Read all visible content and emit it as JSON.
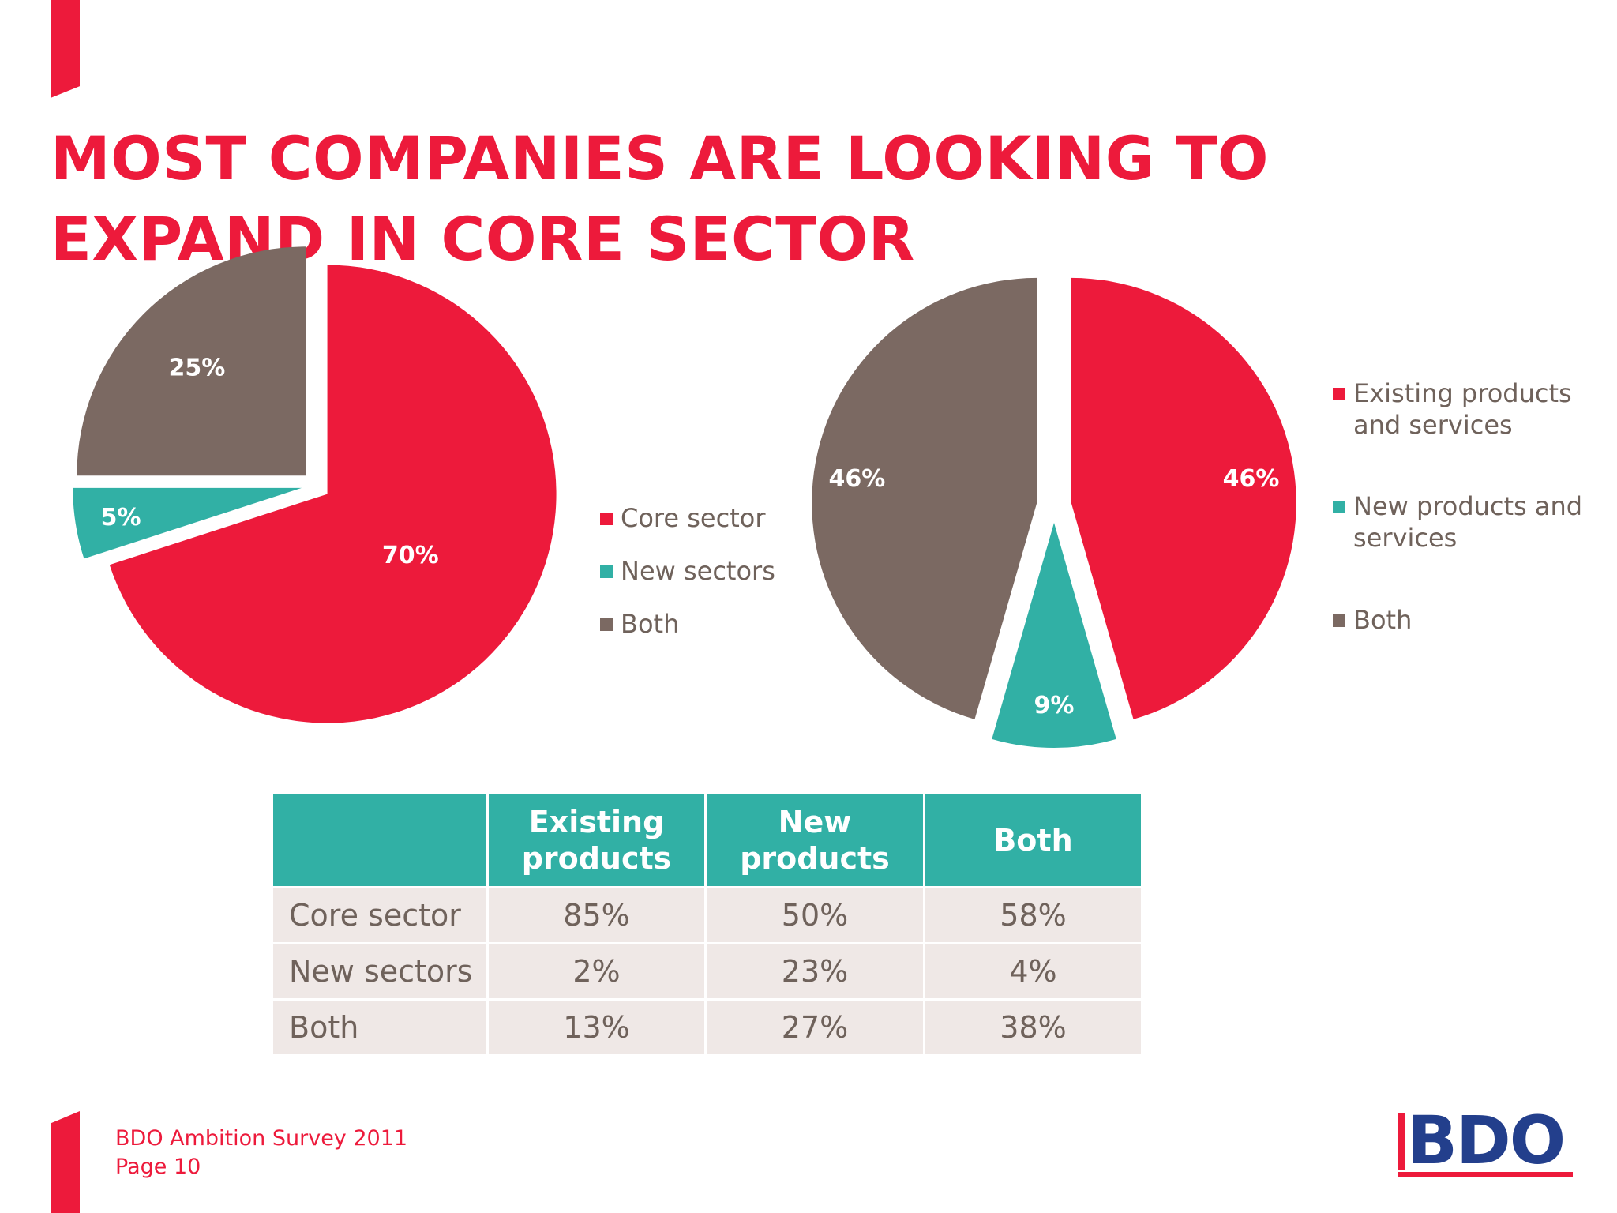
{
  "title": "MOST COMPANIES ARE LOOKING TO EXPAND IN CORE SECTOR",
  "colors": {
    "accent": "#ED1A3B",
    "teal": "#31B0A5",
    "brown": "#7B6962",
    "cell": "#EFE8E6",
    "text": "#6f625b",
    "logo_blue": "#233F8C"
  },
  "chart_data": [
    {
      "type": "pie",
      "categories": [
        "Core sector",
        "New sectors",
        "Both"
      ],
      "values": [
        70,
        5,
        25
      ],
      "labels": [
        "70%",
        "5%",
        "25%"
      ],
      "colors": [
        "#ED1A3B",
        "#31B0A5",
        "#7B6962"
      ],
      "exploded": true,
      "legend_position": "right"
    },
    {
      "type": "pie",
      "categories": [
        "Existing products and services",
        "New products and services",
        "Both"
      ],
      "values": [
        46,
        9,
        46
      ],
      "labels": [
        "46%",
        "9%",
        "46%"
      ],
      "colors": [
        "#ED1A3B",
        "#31B0A5",
        "#7B6962"
      ],
      "exploded": true,
      "legend_position": "right"
    },
    {
      "type": "table",
      "columns": [
        "",
        "Existing products",
        "New products",
        "Both"
      ],
      "rows": [
        {
          "label": "Core sector",
          "values": [
            "85%",
            "50%",
            "58%"
          ]
        },
        {
          "label": "New sectors",
          "values": [
            "2%",
            "23%",
            "4%"
          ]
        },
        {
          "label": "Both",
          "values": [
            "13%",
            "27%",
            "38%"
          ]
        }
      ]
    }
  ],
  "footer": {
    "line1": "BDO Ambition Survey 2011",
    "line2": "Page 10"
  },
  "logo": {
    "text": "BDO"
  }
}
